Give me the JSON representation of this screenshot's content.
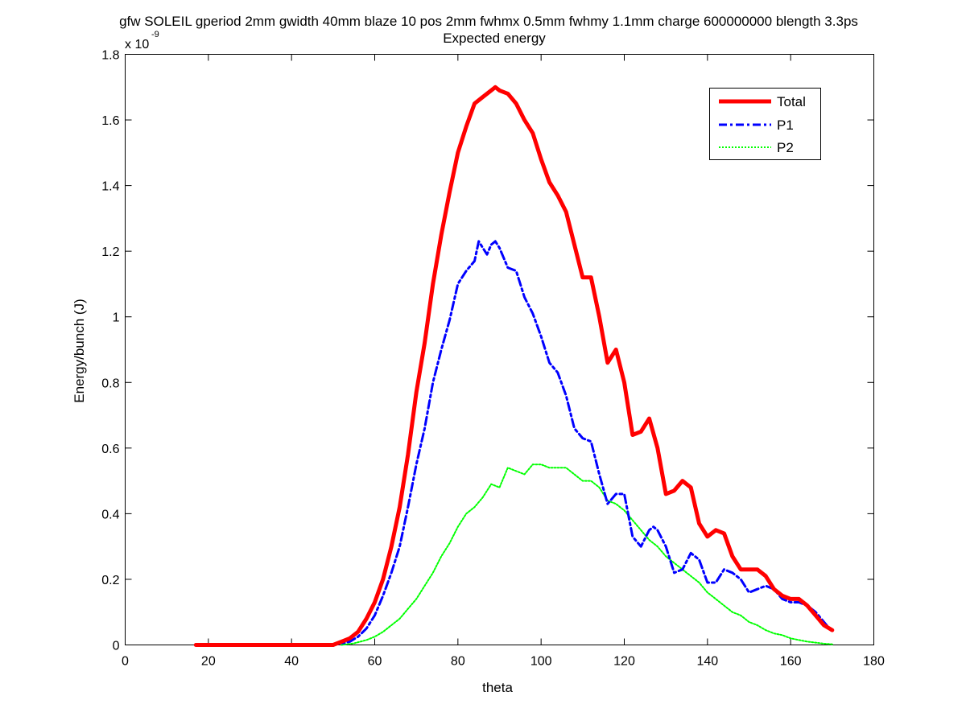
{
  "chart_data": {
    "type": "line",
    "title": "gfw SOLEIL gperiod 2mm gwidth 40mm blaze 10 pos 2mm fwhmx 0.5mm fwhmy 1.1mm charge 600000000 blength 3.3ps",
    "subtitle": "Expected energy",
    "xlabel": "theta",
    "ylabel": "Energy/bunch (J)",
    "y_multiplier_base": "x 10",
    "y_multiplier_exp": "-9",
    "xlim": [
      0,
      180
    ],
    "ylim": [
      0,
      1.8
    ],
    "xticks": [
      0,
      20,
      40,
      60,
      80,
      100,
      120,
      140,
      160,
      180
    ],
    "yticks": [
      0,
      0.2,
      0.4,
      0.6,
      0.8,
      1,
      1.2,
      1.4,
      1.6,
      1.8
    ],
    "legend_position": "top-right",
    "grid": false,
    "series": [
      {
        "name": "Total",
        "color": "#ff0000",
        "style": "solid",
        "x": [
          17,
          20,
          25,
          30,
          35,
          40,
          45,
          50,
          52,
          54,
          56,
          58,
          60,
          62,
          64,
          66,
          68,
          70,
          72,
          74,
          76,
          78,
          80,
          82,
          84,
          86,
          88,
          89,
          90,
          92,
          94,
          96,
          98,
          100,
          102,
          104,
          106,
          108,
          110,
          112,
          114,
          116,
          118,
          120,
          122,
          124,
          126,
          128,
          130,
          132,
          134,
          136,
          138,
          140,
          142,
          144,
          146,
          148,
          150,
          152,
          154,
          156,
          158,
          160,
          162,
          164,
          166,
          168,
          170
        ],
        "y": [
          0,
          0,
          0,
          0,
          0,
          0,
          0,
          0,
          0.01,
          0.02,
          0.04,
          0.08,
          0.13,
          0.2,
          0.3,
          0.42,
          0.58,
          0.77,
          0.92,
          1.1,
          1.25,
          1.38,
          1.5,
          1.58,
          1.65,
          1.67,
          1.69,
          1.7,
          1.69,
          1.68,
          1.65,
          1.6,
          1.56,
          1.48,
          1.41,
          1.37,
          1.32,
          1.22,
          1.12,
          1.12,
          1.0,
          0.86,
          0.9,
          0.8,
          0.64,
          0.65,
          0.69,
          0.6,
          0.46,
          0.47,
          0.5,
          0.48,
          0.37,
          0.33,
          0.35,
          0.34,
          0.27,
          0.23,
          0.23,
          0.23,
          0.21,
          0.17,
          0.15,
          0.14,
          0.14,
          0.12,
          0.09,
          0.06,
          0.045
        ]
      },
      {
        "name": "P1",
        "color": "#0000ff",
        "style": "dashdot",
        "x": [
          17,
          20,
          25,
          30,
          35,
          40,
          45,
          50,
          52,
          54,
          56,
          58,
          60,
          62,
          64,
          66,
          68,
          70,
          72,
          74,
          76,
          78,
          80,
          82,
          84,
          85,
          86,
          87,
          88,
          89,
          90,
          92,
          94,
          96,
          98,
          100,
          102,
          104,
          106,
          108,
          110,
          112,
          114,
          116,
          118,
          120,
          122,
          124,
          126,
          127,
          128,
          130,
          132,
          134,
          136,
          138,
          140,
          142,
          144,
          146,
          148,
          150,
          152,
          154,
          156,
          158,
          160,
          162,
          164,
          166,
          168,
          170
        ],
        "y": [
          0,
          0,
          0,
          0,
          0,
          0,
          0,
          0,
          0.005,
          0.01,
          0.025,
          0.05,
          0.09,
          0.15,
          0.22,
          0.3,
          0.42,
          0.55,
          0.66,
          0.8,
          0.9,
          0.99,
          1.1,
          1.14,
          1.17,
          1.23,
          1.21,
          1.19,
          1.22,
          1.23,
          1.21,
          1.15,
          1.14,
          1.06,
          1.01,
          0.94,
          0.86,
          0.83,
          0.76,
          0.66,
          0.63,
          0.62,
          0.52,
          0.43,
          0.46,
          0.46,
          0.33,
          0.3,
          0.35,
          0.36,
          0.35,
          0.3,
          0.22,
          0.23,
          0.28,
          0.26,
          0.19,
          0.19,
          0.23,
          0.22,
          0.2,
          0.16,
          0.17,
          0.18,
          0.17,
          0.14,
          0.13,
          0.13,
          0.12,
          0.1,
          0.07,
          0.04
        ]
      },
      {
        "name": "P2",
        "color": "#00ff00",
        "style": "dotted",
        "x": [
          52,
          55,
          58,
          60,
          62,
          64,
          66,
          68,
          70,
          72,
          74,
          76,
          78,
          80,
          82,
          84,
          86,
          88,
          90,
          92,
          94,
          96,
          98,
          100,
          102,
          104,
          106,
          108,
          110,
          112,
          114,
          116,
          118,
          120,
          122,
          124,
          126,
          128,
          130,
          132,
          134,
          136,
          138,
          140,
          142,
          144,
          146,
          148,
          150,
          152,
          154,
          156,
          158,
          160,
          162,
          164,
          166,
          168,
          170
        ],
        "y": [
          0,
          0.005,
          0.015,
          0.025,
          0.04,
          0.06,
          0.08,
          0.11,
          0.14,
          0.18,
          0.22,
          0.27,
          0.31,
          0.36,
          0.4,
          0.42,
          0.45,
          0.49,
          0.48,
          0.54,
          0.53,
          0.52,
          0.55,
          0.55,
          0.54,
          0.54,
          0.54,
          0.52,
          0.5,
          0.5,
          0.48,
          0.44,
          0.43,
          0.41,
          0.38,
          0.35,
          0.32,
          0.3,
          0.27,
          0.25,
          0.23,
          0.21,
          0.19,
          0.16,
          0.14,
          0.12,
          0.1,
          0.09,
          0.07,
          0.06,
          0.045,
          0.035,
          0.03,
          0.02,
          0.015,
          0.01,
          0.007,
          0.004,
          0.002
        ]
      }
    ]
  }
}
